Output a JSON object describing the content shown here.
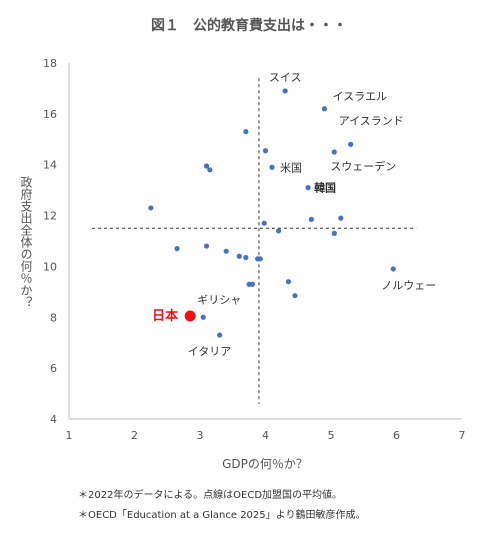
{
  "chart_data": {
    "type": "scatter",
    "title": "図１　公的教育費支出は・・・",
    "xlabel": "GDPの何％か？",
    "ylabel": "政府支出全体の何％か？",
    "xlim": [
      1,
      7
    ],
    "ylim": [
      4,
      18
    ],
    "xticks": [
      "1",
      "2",
      "3",
      "4",
      "5",
      "6",
      "7"
    ],
    "yticks": [
      "4",
      "6",
      "8",
      "10",
      "12",
      "14",
      "16",
      "18"
    ],
    "grid": false,
    "reference_lines": {
      "x": 3.9,
      "y": 11.5
    },
    "point_color": "#4472c4",
    "highlight_color": "#ee1111",
    "points": [
      {
        "x": 4.3,
        "y": 16.9,
        "label": "スイス"
      },
      {
        "x": 4.9,
        "y": 16.2,
        "label": "イスラエル"
      },
      {
        "x": 5.3,
        "y": 14.8,
        "label": "アイスランド"
      },
      {
        "x": 5.05,
        "y": 14.5,
        "label": "スウェーデン"
      },
      {
        "x": 4.1,
        "y": 13.9,
        "label": "米国"
      },
      {
        "x": 4.65,
        "y": 13.1,
        "label": "韓国"
      },
      {
        "x": 5.95,
        "y": 9.9,
        "label": "ノルウェー"
      },
      {
        "x": 3.05,
        "y": 8.0,
        "label": "ギリシャ"
      },
      {
        "x": 3.3,
        "y": 7.3,
        "label": "イタリア"
      },
      {
        "x": 2.85,
        "y": 8.05,
        "label": "日本",
        "highlight": true
      },
      {
        "x": 3.7,
        "y": 15.3,
        "label": ""
      },
      {
        "x": 4.0,
        "y": 14.55,
        "label": ""
      },
      {
        "x": 3.1,
        "y": 13.95,
        "label": ""
      },
      {
        "x": 3.15,
        "y": 13.8,
        "label": ""
      },
      {
        "x": 2.25,
        "y": 12.3,
        "label": ""
      },
      {
        "x": 4.7,
        "y": 11.85,
        "label": ""
      },
      {
        "x": 5.15,
        "y": 11.9,
        "label": ""
      },
      {
        "x": 3.98,
        "y": 11.7,
        "label": ""
      },
      {
        "x": 4.2,
        "y": 11.4,
        "label": ""
      },
      {
        "x": 5.05,
        "y": 11.3,
        "label": ""
      },
      {
        "x": 2.65,
        "y": 10.7,
        "label": ""
      },
      {
        "x": 3.1,
        "y": 10.8,
        "label": ""
      },
      {
        "x": 3.4,
        "y": 10.6,
        "label": ""
      },
      {
        "x": 3.6,
        "y": 10.4,
        "label": ""
      },
      {
        "x": 3.7,
        "y": 10.35,
        "label": ""
      },
      {
        "x": 3.88,
        "y": 10.3,
        "label": ""
      },
      {
        "x": 3.92,
        "y": 10.3,
        "label": ""
      },
      {
        "x": 3.75,
        "y": 9.3,
        "label": ""
      },
      {
        "x": 3.8,
        "y": 9.3,
        "label": ""
      },
      {
        "x": 4.35,
        "y": 9.4,
        "label": ""
      },
      {
        "x": 4.45,
        "y": 8.85,
        "label": ""
      }
    ]
  },
  "notes": [
    "＊2022年のデータによる。点線はOECD加盟国の平均値。",
    "＊OECD「Education at a Glance 2025」より鶴田敏彦作成。"
  ]
}
